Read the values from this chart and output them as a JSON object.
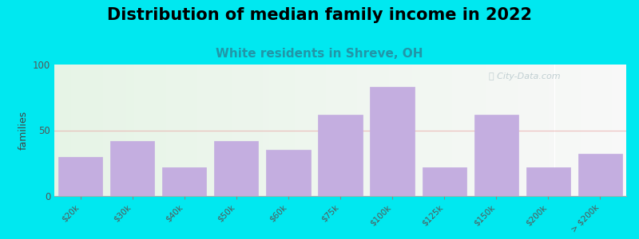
{
  "title": "Distribution of median family income in 2022",
  "subtitle": "White residents in Shreve, OH",
  "ylabel": "families",
  "categories": [
    "$20k",
    "$30k",
    "$40k",
    "$50k",
    "$60k",
    "$75k",
    "$100k",
    "$125k",
    "$150k",
    "$200k",
    "> $200k"
  ],
  "values": [
    30,
    42,
    22,
    42,
    35,
    62,
    83,
    22,
    62,
    22,
    32
  ],
  "bar_color": "#c4aee0",
  "bar_edgecolor": "#c4aee0",
  "background_outer": "#00e8f0",
  "bg_left_color": "#e6f4e6",
  "bg_right_color": "#f8f8f8",
  "ylim": [
    0,
    100
  ],
  "yticks": [
    0,
    50,
    100
  ],
  "grid_color": "#e8a0a0",
  "grid_alpha": 0.6,
  "title_fontsize": 15,
  "subtitle_fontsize": 11,
  "subtitle_color": "#2196a8",
  "ylabel_fontsize": 9,
  "watermark": "City-Data.com",
  "watermark_color": "#b8c8cc"
}
